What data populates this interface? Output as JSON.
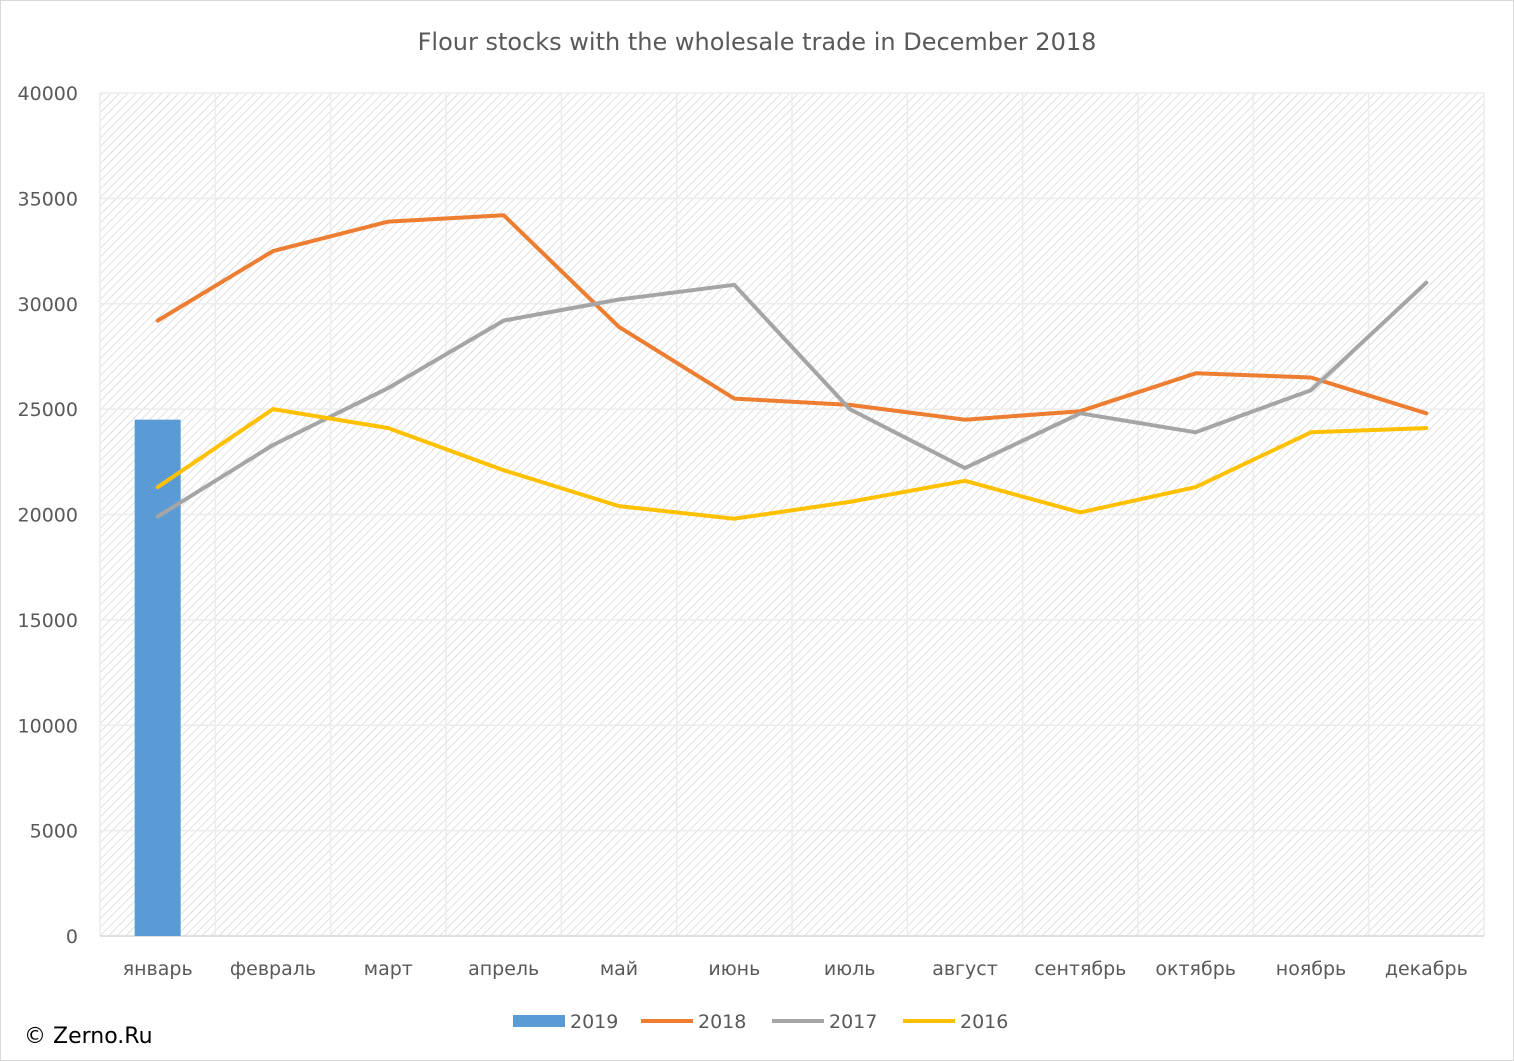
{
  "copyright": "© Zerno.Ru",
  "chart_data": {
    "type": "bar+line",
    "title": "Flour stocks with the wholesale trade in December 2018",
    "xlabel": "",
    "ylabel": "",
    "ylim": [
      0,
      40000
    ],
    "yticks": [
      0,
      5000,
      10000,
      15000,
      20000,
      25000,
      30000,
      35000,
      40000
    ],
    "grid": true,
    "legend_position": "bottom",
    "categories": [
      "январь",
      "февраль",
      "март",
      "апрель",
      "май",
      "июнь",
      "июль",
      "август",
      "сентябрь",
      "октябрь",
      "ноябрь",
      "декабрь"
    ],
    "series": [
      {
        "name": "2019",
        "kind": "bar",
        "color": "#5b9bd5",
        "values": [
          24500,
          null,
          null,
          null,
          null,
          null,
          null,
          null,
          null,
          null,
          null,
          null
        ]
      },
      {
        "name": "2018",
        "kind": "line",
        "color": "#ed7d31",
        "values": [
          29200,
          32500,
          33900,
          34200,
          28900,
          25500,
          25200,
          24500,
          24900,
          26700,
          26500,
          24800
        ]
      },
      {
        "name": "2017",
        "kind": "line",
        "color": "#a5a5a5",
        "values": [
          19900,
          23300,
          26000,
          29200,
          30200,
          30900,
          25000,
          22200,
          24800,
          23900,
          25900,
          31000
        ]
      },
      {
        "name": "2016",
        "kind": "line",
        "color": "#ffc000",
        "values": [
          21300,
          25000,
          24100,
          22100,
          20400,
          19800,
          20600,
          21600,
          20100,
          21300,
          23900,
          24100
        ]
      }
    ]
  }
}
